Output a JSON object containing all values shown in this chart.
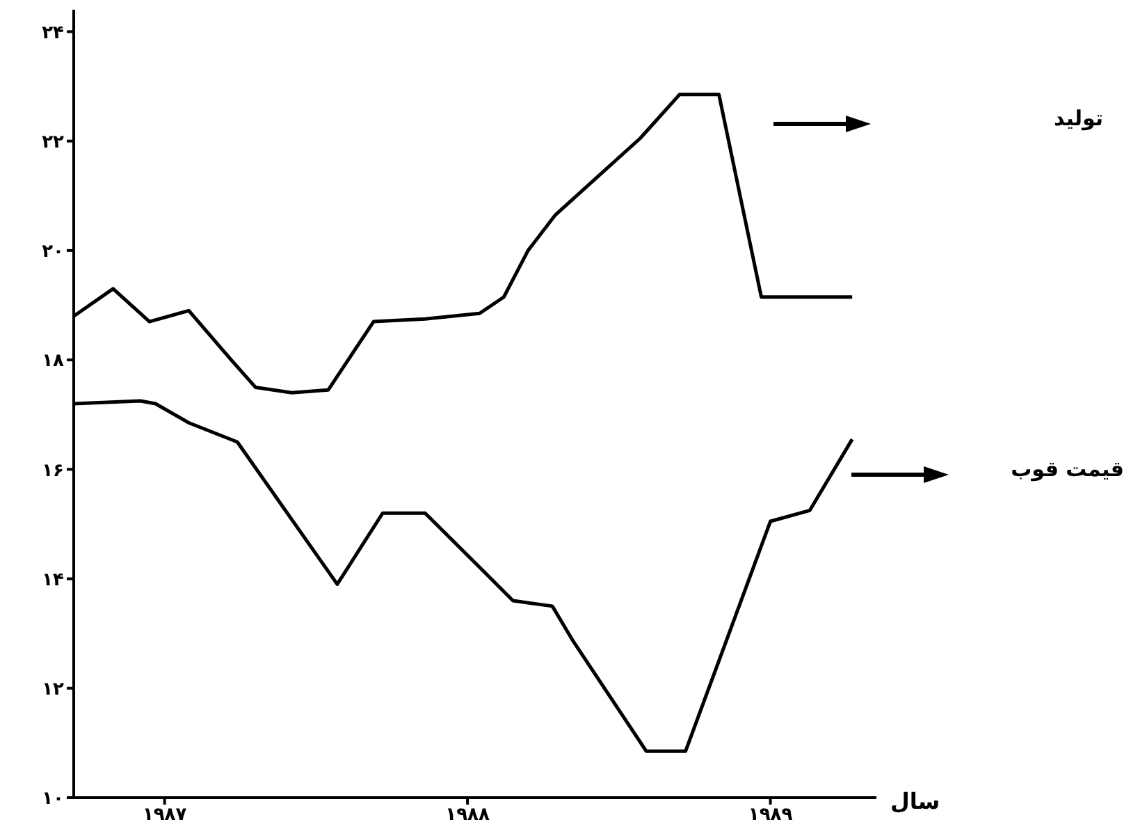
{
  "chart_data": {
    "type": "line",
    "xlabel": "سال",
    "xlim": [
      1986.7,
      1989.35
    ],
    "ylim": [
      10,
      24.4
    ],
    "xticks": [
      {
        "value": 1987,
        "label": "۱۹۸۷"
      },
      {
        "value": 1988,
        "label": "۱۹۸۸"
      },
      {
        "value": 1989,
        "label": "۱۹۸۹"
      }
    ],
    "yticks": [
      {
        "value": 10,
        "label": "۱۰"
      },
      {
        "value": 12,
        "label": "۱۲"
      },
      {
        "value": 14,
        "label": "۱۴"
      },
      {
        "value": 16,
        "label": "۱۶"
      },
      {
        "value": 18,
        "label": "۱۸"
      },
      {
        "value": 20,
        "label": "۲۰"
      },
      {
        "value": 22,
        "label": "۲۲"
      },
      {
        "value": 24,
        "label": "۲۴"
      }
    ],
    "grid": false,
    "legend": false,
    "marker": "none",
    "line_style": "solid",
    "series": [
      {
        "name": "تولید",
        "color": "#000000",
        "x": [
          1986.7,
          1986.83,
          1986.95,
          1987.08,
          1987.22,
          1987.3,
          1987.42,
          1987.54,
          1987.69,
          1987.86,
          1988.04,
          1988.12,
          1988.2,
          1988.29,
          1988.57,
          1988.7,
          1988.83,
          1988.97,
          1989.27
        ],
        "values": [
          18.8,
          19.3,
          18.7,
          18.9,
          18.0,
          17.5,
          17.4,
          17.45,
          18.7,
          18.75,
          18.85,
          19.15,
          20.0,
          20.65,
          22.05,
          22.85,
          22.85,
          19.15,
          19.15
        ]
      },
      {
        "name": "قیمت قوب",
        "color": "#000000",
        "x": [
          1986.7,
          1986.92,
          1986.97,
          1987.08,
          1987.24,
          1987.57,
          1987.72,
          1987.86,
          1988.06,
          1988.15,
          1988.28,
          1988.35,
          1988.59,
          1988.72,
          1989.0,
          1989.13,
          1989.27
        ],
        "values": [
          17.2,
          17.25,
          17.2,
          16.85,
          16.5,
          13.9,
          15.2,
          15.2,
          14.1,
          13.6,
          13.5,
          12.85,
          10.85,
          10.85,
          15.05,
          15.25,
          16.55
        ]
      }
    ]
  }
}
